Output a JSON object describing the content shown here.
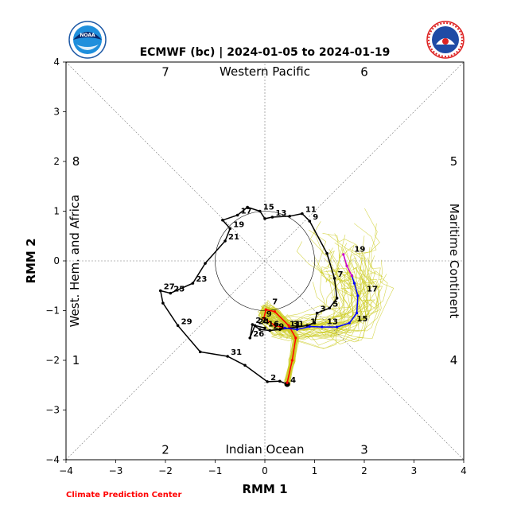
{
  "chart_data": {
    "type": "line",
    "title": "ECMWF (bc) | 2024-01-05 to 2024-01-19",
    "xlabel": "RMM 1",
    "ylabel": "RMM 2",
    "xlim": [
      -4,
      4
    ],
    "ylim": [
      -4,
      4
    ],
    "xticks": [
      "−4",
      "−3",
      "−2",
      "−1",
      "0",
      "1",
      "2",
      "3",
      "4"
    ],
    "yticks": [
      "−4",
      "−3",
      "−2",
      "−1",
      "0",
      "1",
      "2",
      "3",
      "4"
    ],
    "region_labels": {
      "top": "Western Pacific",
      "bottom": "Indian Ocean",
      "left": "West. Hem. and Africa",
      "right": "Maritime Continent"
    },
    "phase_numbers": [
      {
        "label": "7",
        "x": -2,
        "y": 3.8
      },
      {
        "label": "6",
        "x": 2,
        "y": 3.8
      },
      {
        "label": "8",
        "x": -3.8,
        "y": 2
      },
      {
        "label": "5",
        "x": 3.8,
        "y": 2
      },
      {
        "label": "1",
        "x": -3.8,
        "y": -2
      },
      {
        "label": "4",
        "x": 3.8,
        "y": -2
      },
      {
        "label": "2",
        "x": -2,
        "y": -3.8
      },
      {
        "label": "3",
        "x": 2,
        "y": -3.8
      }
    ],
    "observed": {
      "color": "#000000",
      "points": [
        {
          "x": 0.45,
          "y": -2.48,
          "label": "4"
        },
        {
          "x": 0.3,
          "y": -2.42,
          "label": ""
        },
        {
          "x": 0.05,
          "y": -2.43,
          "label": "2"
        },
        {
          "x": -0.4,
          "y": -2.1,
          "label": ""
        },
        {
          "x": -0.75,
          "y": -1.92,
          "label": "31"
        },
        {
          "x": -1.3,
          "y": -1.83,
          "label": ""
        },
        {
          "x": -1.75,
          "y": -1.3,
          "label": "29"
        },
        {
          "x": -2.05,
          "y": -0.85,
          "label": ""
        },
        {
          "x": -2.1,
          "y": -0.6,
          "label": "27"
        },
        {
          "x": -1.9,
          "y": -0.65,
          "label": "25"
        },
        {
          "x": -1.45,
          "y": -0.45,
          "label": "23"
        },
        {
          "x": -1.2,
          "y": -0.05,
          "label": ""
        },
        {
          "x": -0.8,
          "y": 0.4,
          "label": "21"
        },
        {
          "x": -0.7,
          "y": 0.65,
          "label": "19"
        },
        {
          "x": -0.85,
          "y": 0.82,
          "label": ""
        },
        {
          "x": -0.55,
          "y": 0.92,
          "label": "17"
        },
        {
          "x": -0.35,
          "y": 1.08,
          "label": ""
        },
        {
          "x": -0.1,
          "y": 1.0,
          "label": "15"
        },
        {
          "x": 0.0,
          "y": 0.85,
          "label": ""
        },
        {
          "x": 0.15,
          "y": 0.88,
          "label": "13"
        },
        {
          "x": 0.5,
          "y": 0.9,
          "label": ""
        },
        {
          "x": 0.75,
          "y": 0.95,
          "label": "11"
        },
        {
          "x": 0.9,
          "y": 0.8,
          "label": "9"
        },
        {
          "x": 1.25,
          "y": 0.15,
          "label": ""
        },
        {
          "x": 1.4,
          "y": -0.35,
          "label": "7"
        },
        {
          "x": 1.45,
          "y": -0.75,
          "label": ""
        },
        {
          "x": 1.3,
          "y": -0.95,
          "label": "5"
        },
        {
          "x": 1.05,
          "y": -1.05,
          "label": "3"
        },
        {
          "x": 1.0,
          "y": -1.25,
          "label": ""
        },
        {
          "x": 0.85,
          "y": -1.3,
          "label": "1"
        },
        {
          "x": 0.65,
          "y": -1.33,
          "label": ""
        },
        {
          "x": 0.5,
          "y": -1.35,
          "label": "31"
        },
        {
          "x": 0.3,
          "y": -1.38,
          "label": ""
        },
        {
          "x": 0.1,
          "y": -1.4,
          "label": "29"
        },
        {
          "x": -0.1,
          "y": -1.38,
          "label": ""
        },
        {
          "x": -0.25,
          "y": -1.28,
          "label": "27"
        },
        {
          "x": -0.3,
          "y": -1.55,
          "label": "26"
        },
        {
          "x": -0.2,
          "y": -1.3,
          "label": "24"
        },
        {
          "x": 0.0,
          "y": -1.35,
          "label": "16"
        }
      ]
    },
    "forecast_ensemble_mean": [
      {
        "name": "red",
        "color": "#ff0000",
        "points": [
          {
            "x": 0.45,
            "y": -2.45
          },
          {
            "x": 0.55,
            "y": -2.0
          },
          {
            "x": 0.62,
            "y": -1.55
          },
          {
            "x": 0.48,
            "y": -1.3
          },
          {
            "x": 0.2,
            "y": -1.02
          },
          {
            "x": 0.02,
            "y": -0.98
          },
          {
            "x": -0.02,
            "y": -1.15
          },
          {
            "x": 0.2,
            "y": -1.3
          },
          {
            "x": 0.4,
            "y": -1.35
          }
        ]
      },
      {
        "name": "blue",
        "color": "#0000ff",
        "points": [
          {
            "x": 0.4,
            "y": -1.35
          },
          {
            "x": 0.65,
            "y": -1.38
          },
          {
            "x": 0.9,
            "y": -1.32
          },
          {
            "x": 1.15,
            "y": -1.33
          },
          {
            "x": 1.45,
            "y": -1.33
          },
          {
            "x": 1.7,
            "y": -1.25
          },
          {
            "x": 1.85,
            "y": -1.05
          },
          {
            "x": 1.87,
            "y": -0.7
          },
          {
            "x": 1.8,
            "y": -0.45
          },
          {
            "x": 1.75,
            "y": -0.3
          }
        ]
      },
      {
        "name": "magenta",
        "color": "#cc00cc",
        "points": [
          {
            "x": 1.75,
            "y": -0.3
          },
          {
            "x": 1.65,
            "y": -0.1
          },
          {
            "x": 1.58,
            "y": 0.13
          }
        ]
      }
    ],
    "forecast_day_labels": [
      {
        "label": "7",
        "x": 0.1,
        "y": -0.9
      },
      {
        "label": "9",
        "x": -0.02,
        "y": -1.15
      },
      {
        "label": "11",
        "x": 0.45,
        "y": -1.35
      },
      {
        "label": "13",
        "x": 1.2,
        "y": -1.3
      },
      {
        "label": "15",
        "x": 1.8,
        "y": -1.25
      },
      {
        "label": "17",
        "x": 2.0,
        "y": -0.65
      },
      {
        "label": "19",
        "x": 1.75,
        "y": 0.15
      }
    ],
    "credit": "Climate Prediction Center",
    "grid": false,
    "unit_circle": true
  }
}
